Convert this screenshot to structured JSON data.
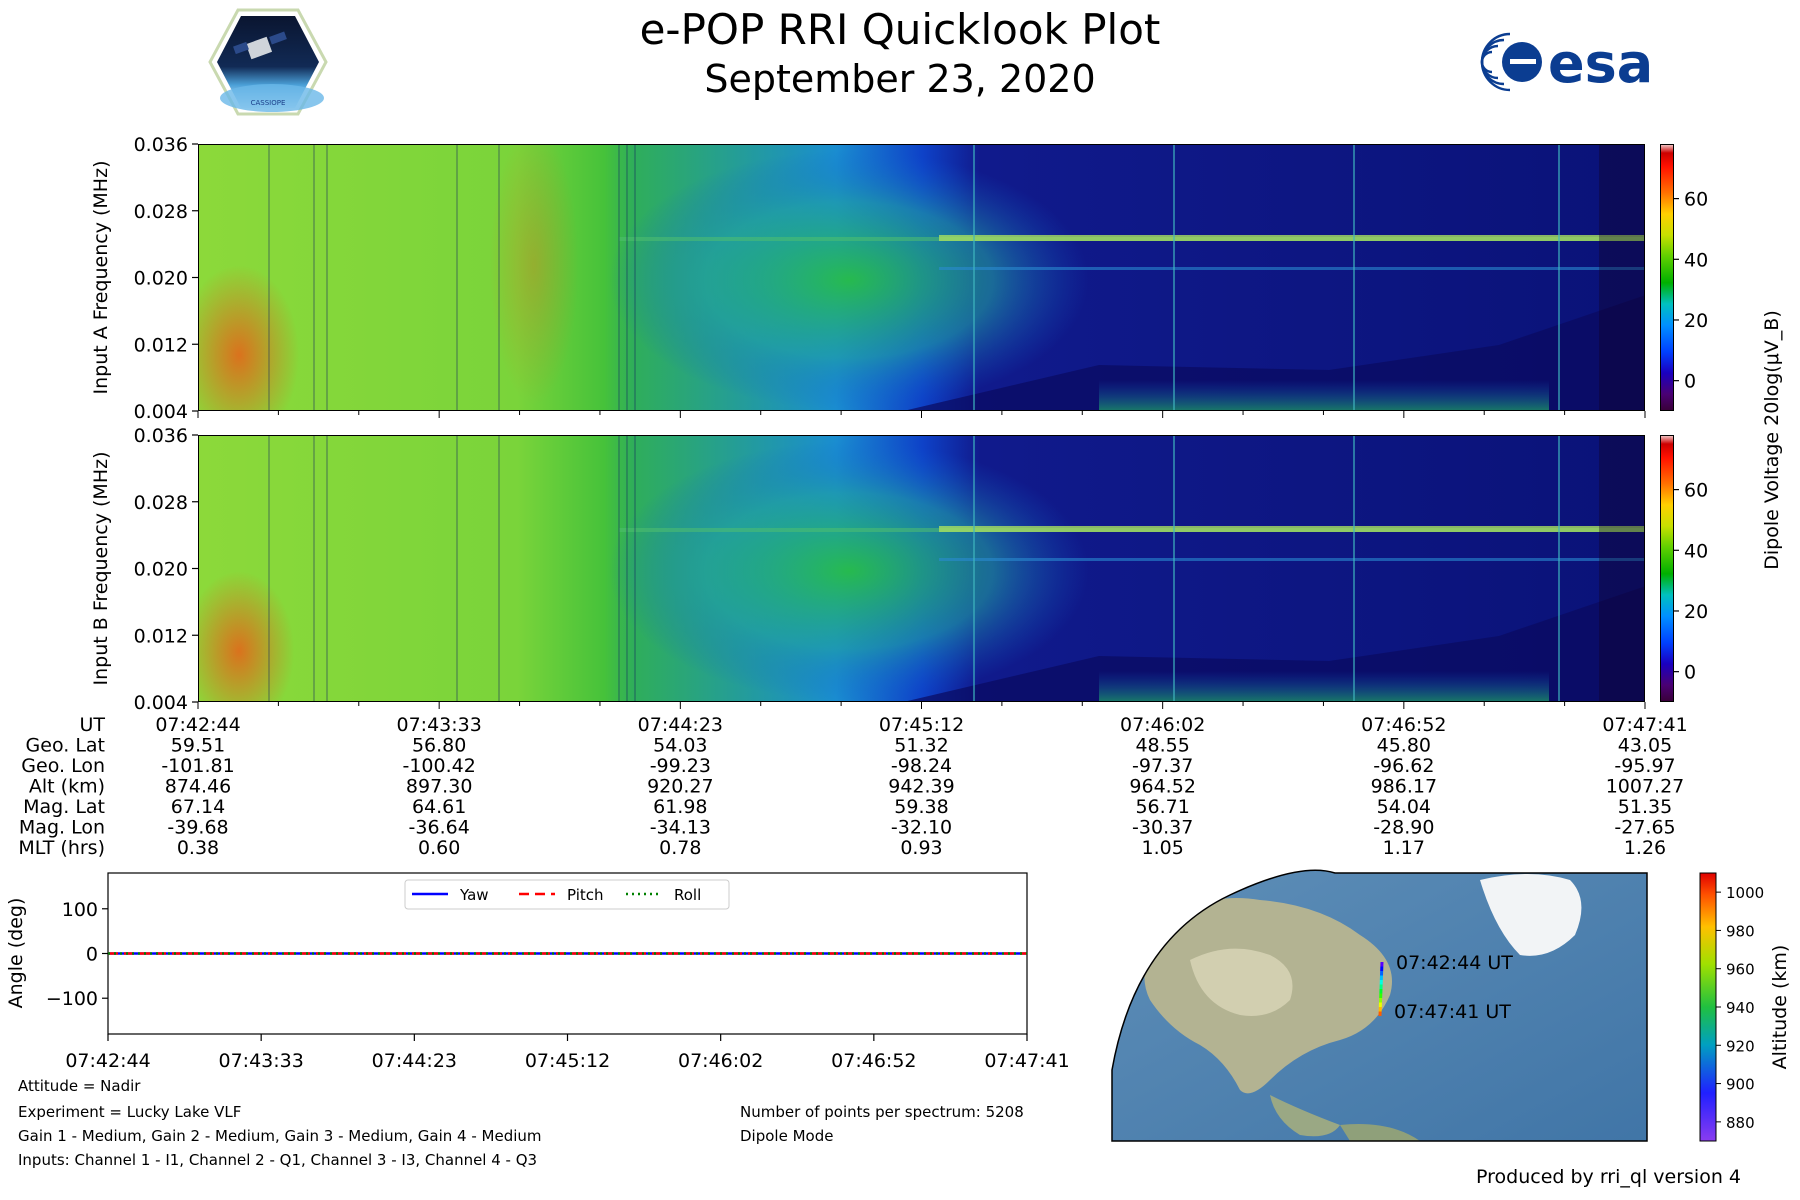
{
  "header": {
    "title": "e-POP RRI Quicklook Plot",
    "date": "September 23, 2020",
    "left_logo_text": "CASSIOPE",
    "right_logo_text": "esa"
  },
  "colors": {
    "colorbar_low": "#3a003a",
    "colorbar_mid": "#00b000",
    "colorbar_high": "#cc0000",
    "yaw": "#0000ff",
    "pitch": "#ff0000",
    "roll": "#008000"
  },
  "chart_data": [
    {
      "type": "heatmap",
      "name": "input-a-spectrogram",
      "ylabel": "Input A Frequency (MHz)",
      "yticks": [
        "0.004",
        "0.012",
        "0.020",
        "0.028",
        "0.036"
      ],
      "ylim": [
        0.004,
        0.036
      ],
      "xlim": [
        "07:42:44",
        "07:47:41"
      ],
      "colorbar_label": "Dipole Voltage 20log(μV_B)",
      "colorbar_ticks": [
        "0",
        "20",
        "40",
        "60"
      ],
      "color_range": [
        -10,
        78
      ]
    },
    {
      "type": "heatmap",
      "name": "input-b-spectrogram",
      "ylabel": "Input B Frequency (MHz)",
      "yticks": [
        "0.004",
        "0.012",
        "0.020",
        "0.028",
        "0.036"
      ],
      "ylim": [
        0.004,
        0.036
      ],
      "xlim": [
        "07:42:44",
        "07:47:41"
      ],
      "colorbar_label": "Dipole Voltage 20log(μV_B)",
      "colorbar_ticks": [
        "0",
        "20",
        "40",
        "60"
      ],
      "color_range": [
        -10,
        78
      ]
    },
    {
      "type": "line",
      "name": "attitude-angles",
      "ylabel": "Angle (deg)",
      "x": [
        "07:42:44",
        "07:43:33",
        "07:44:23",
        "07:45:12",
        "07:46:02",
        "07:46:52",
        "07:47:41"
      ],
      "ylim": [
        -180,
        180
      ],
      "yticks": [
        "−100",
        "0",
        "100"
      ],
      "series": [
        {
          "name": "Yaw",
          "values": [
            0,
            0,
            0,
            0,
            0,
            0,
            0
          ]
        },
        {
          "name": "Pitch",
          "values": [
            0,
            0,
            0,
            0,
            0,
            0,
            0
          ]
        },
        {
          "name": "Roll",
          "values": [
            0,
            0,
            0,
            0,
            0,
            0,
            0
          ]
        }
      ],
      "legend": "top-center"
    },
    {
      "type": "scatter",
      "name": "ground-track-map",
      "colorbar_label": "Altitude (km)",
      "colorbar_ticks": [
        "880",
        "900",
        "920",
        "940",
        "960",
        "980",
        "1000"
      ],
      "start_label": "07:42:44 UT",
      "end_label": "07:47:41 UT"
    }
  ],
  "ephemeris": {
    "row_labels": [
      "UT",
      "Geo. Lat",
      "Geo. Lon",
      "Alt (km)",
      "Mag. Lat",
      "Mag. Lon",
      "MLT (hrs)"
    ],
    "columns": [
      [
        "07:42:44",
        "59.51",
        "-101.81",
        "874.46",
        "67.14",
        "-39.68",
        "0.38"
      ],
      [
        "07:43:33",
        "56.80",
        "-100.42",
        "897.30",
        "64.61",
        "-36.64",
        "0.60"
      ],
      [
        "07:44:23",
        "54.03",
        "-99.23",
        "920.27",
        "61.98",
        "-34.13",
        "0.78"
      ],
      [
        "07:45:12",
        "51.32",
        "-98.24",
        "942.39",
        "59.38",
        "-32.10",
        "0.93"
      ],
      [
        "07:46:02",
        "48.55",
        "-97.37",
        "964.52",
        "56.71",
        "-30.37",
        "1.05"
      ],
      [
        "07:46:52",
        "45.80",
        "-96.62",
        "986.17",
        "54.04",
        "-28.90",
        "1.17"
      ],
      [
        "07:47:41",
        "43.05",
        "-95.97",
        "1007.27",
        "51.35",
        "-27.65",
        "1.26"
      ]
    ]
  },
  "info": {
    "attitude": "Attitude = Nadir",
    "experiment": "Experiment = Lucky Lake VLF",
    "gains": "Gain 1 - Medium, Gain 2 - Medium, Gain 3 - Medium, Gain 4 - Medium",
    "inputs": "Inputs: Channel 1 - I1, Channel 2 - Q1, Channel 3 - I3, Channel 4 - Q3",
    "points": "Number of points per spectrum: 5208",
    "mode": "Dipole Mode"
  },
  "footer": "Produced by rri_ql version 4"
}
